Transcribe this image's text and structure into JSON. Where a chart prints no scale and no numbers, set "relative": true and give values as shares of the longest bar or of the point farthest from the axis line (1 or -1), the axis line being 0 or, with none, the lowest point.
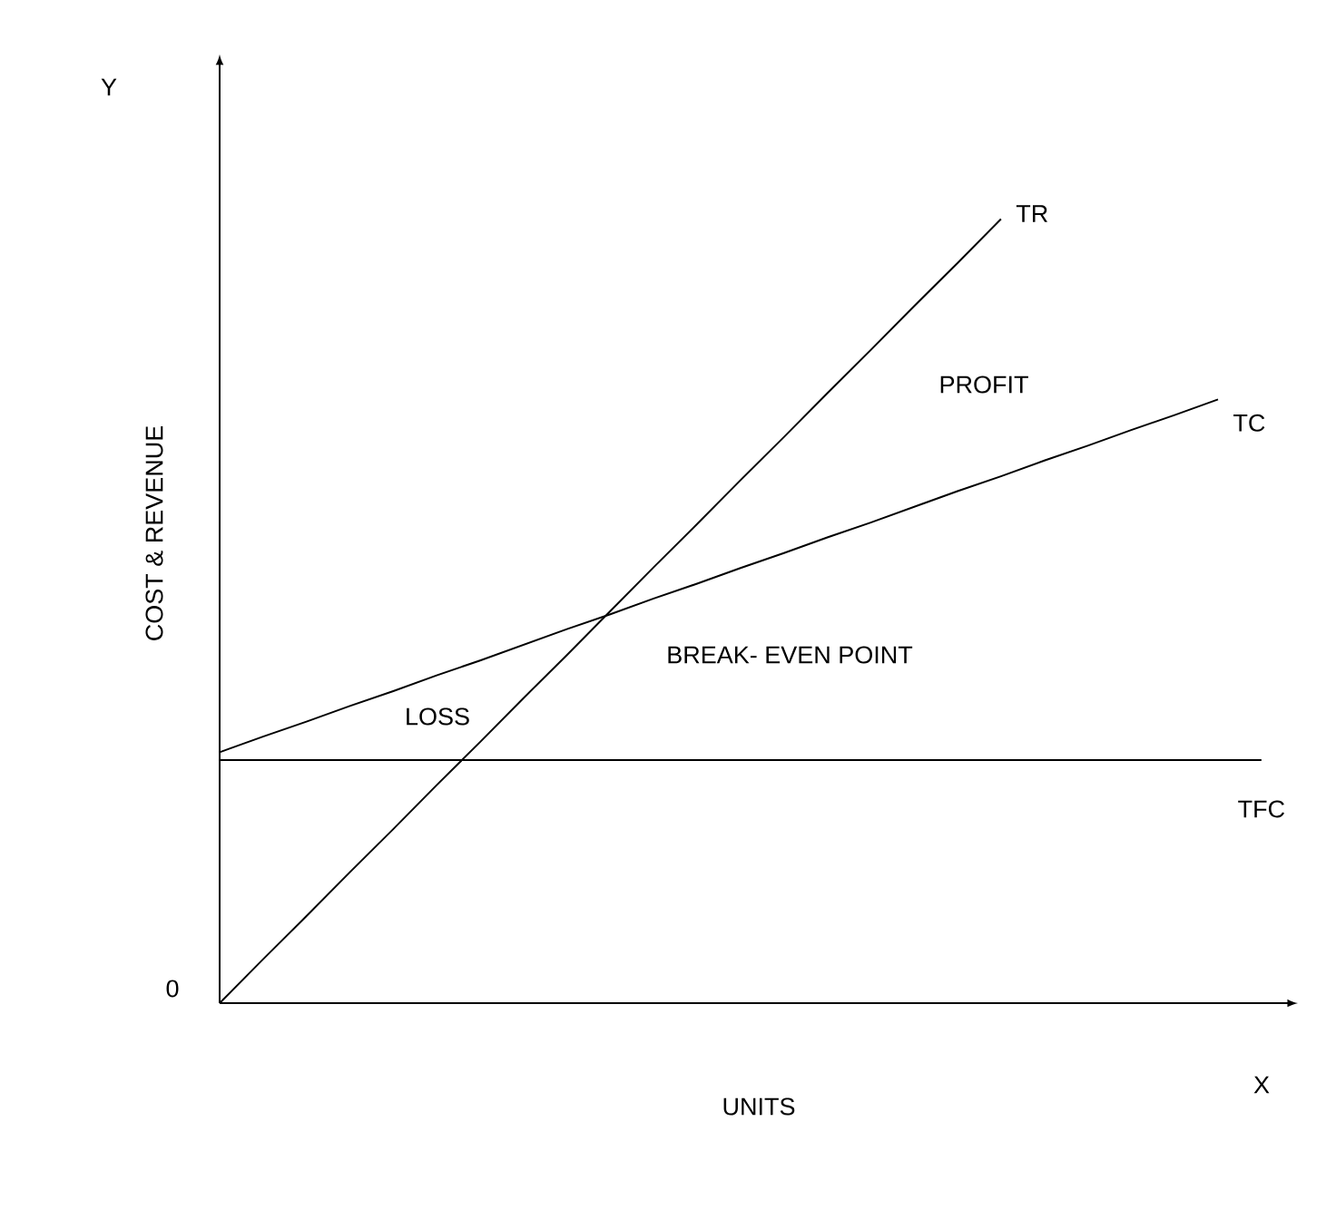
{
  "chart_data": {
    "type": "line",
    "relative": true,
    "xlabel": "UNITS",
    "ylabel": "COST & REVENUE",
    "categories": [
      null,
      null,
      null,
      null,
      null,
      null,
      null,
      null,
      null,
      null,
      null,
      null,
      null,
      null,
      null,
      null,
      null,
      null,
      null,
      null,
      null,
      null,
      null,
      null,
      null
    ],
    "series": [
      {
        "name": "TR",
        "color": "#000000",
        "values": [
          0,
          0.056,
          0.111,
          0.167,
          0.222,
          0.278,
          0.333,
          0.389,
          0.444,
          0.5,
          0.556,
          0.611,
          0.667,
          0.722,
          0.778,
          0.833,
          0.889,
          0.944,
          1,
          null,
          null,
          null,
          null,
          null,
          null
        ]
      },
      {
        "name": "TC",
        "color": "#000000",
        "values": [
          0.32,
          0.34,
          0.359,
          0.379,
          0.398,
          0.418,
          0.437,
          0.457,
          0.477,
          0.496,
          0.516,
          0.535,
          0.555,
          0.574,
          0.594,
          0.613,
          0.633,
          0.653,
          0.672,
          0.692,
          0.711,
          0.731,
          0.75,
          0.77,
          null
        ]
      },
      {
        "name": "TFC",
        "color": "#000000",
        "values": [
          0.31,
          0.31,
          0.31,
          0.31,
          0.31,
          0.31,
          0.31,
          0.31,
          0.31,
          0.31,
          0.31,
          0.31,
          0.31,
          0.31,
          0.31,
          0.31,
          0.31,
          0.31,
          0.31,
          0.31,
          0.31,
          0.31,
          0.31,
          0.31,
          0.31
        ]
      }
    ],
    "annotations": [
      "BREAK- EVEN POINT",
      "PROFIT",
      "LOSS",
      "Y",
      "X",
      "0"
    ],
    "legend": false,
    "marker": "none",
    "line_style": "solid"
  }
}
